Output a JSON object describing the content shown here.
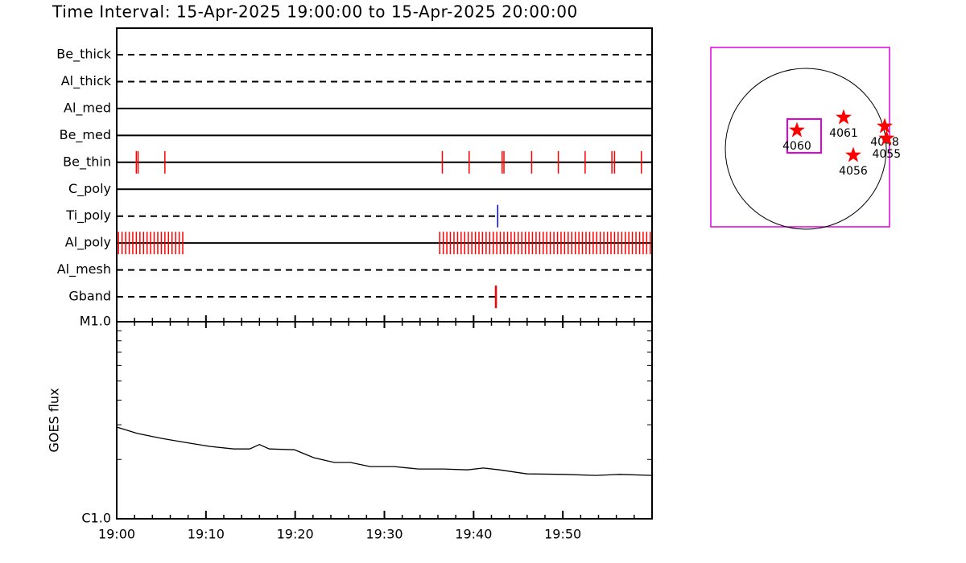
{
  "chart_data": [
    {
      "type": "event",
      "title": "Time Interval: 15-Apr-2025 19:00:00 to 15-Apr-2025 20:00:00",
      "xlim": [
        0,
        60
      ],
      "series": [
        {
          "name": "Be_thick",
          "style": "dashed",
          "color": "#ff0000",
          "x": []
        },
        {
          "name": "Al_thick",
          "style": "dashed",
          "color": "#ff0000",
          "x": []
        },
        {
          "name": "Al_med",
          "style": "solid",
          "color": "#ff0000",
          "x": []
        },
        {
          "name": "Be_med",
          "style": "solid",
          "color": "#ff0000",
          "x": []
        },
        {
          "name": "Be_thin",
          "style": "solid",
          "color": "#ff0000",
          "x": [
            2.2,
            2.4,
            5.4,
            36.5,
            39.5,
            43.2,
            43.4,
            46.5,
            49.5,
            52.5,
            55.5,
            55.8,
            58.8
          ]
        },
        {
          "name": "C_poly",
          "style": "solid",
          "color": "#ff0000",
          "x": []
        },
        {
          "name": "Ti_poly",
          "style": "dashed",
          "color": "#0000ff",
          "x": [
            42.7
          ]
        },
        {
          "name": "Al_poly",
          "style": "solid",
          "color": "#ff0000",
          "x": [
            0.2,
            0.6,
            1.0,
            1.4,
            1.8,
            2.2,
            2.6,
            3.0,
            3.4,
            3.8,
            4.2,
            4.6,
            5.0,
            5.4,
            5.8,
            6.2,
            6.6,
            7.0,
            7.4,
            36.2,
            36.6,
            37.0,
            37.4,
            37.8,
            38.2,
            38.6,
            39.0,
            39.4,
            39.8,
            40.2,
            40.6,
            41.0,
            41.4,
            41.8,
            42.2,
            42.6,
            43.0,
            43.4,
            43.8,
            44.2,
            44.6,
            45.0,
            45.4,
            45.8,
            46.2,
            46.6,
            47.0,
            47.4,
            47.8,
            48.2,
            48.6,
            49.0,
            49.4,
            49.8,
            50.2,
            50.6,
            51.0,
            51.4,
            51.8,
            52.2,
            52.6,
            53.0,
            53.4,
            53.8,
            54.2,
            54.6,
            55.0,
            55.4,
            55.8,
            56.2,
            56.6,
            57.0,
            57.4,
            57.8,
            58.2,
            58.6,
            59.0,
            59.4,
            59.8
          ]
        },
        {
          "name": "Al_mesh",
          "style": "dashed",
          "color": "#ff0000",
          "x": []
        },
        {
          "name": "Gband",
          "style": "dashed",
          "color": "#ff0000",
          "x": [
            42.5
          ]
        }
      ]
    },
    {
      "type": "line",
      "ylabel": "GOES flux",
      "log_scale": true,
      "color": "#000000",
      "xlim": [
        0,
        60
      ],
      "xticks": [
        {
          "value": 0,
          "label": "19:00"
        },
        {
          "value": 10,
          "label": "19:10"
        },
        {
          "value": 20,
          "label": "19:20"
        },
        {
          "value": 30,
          "label": "19:30"
        },
        {
          "value": 40,
          "label": "19:40"
        },
        {
          "value": 50,
          "label": "19:50"
        }
      ],
      "ylim": [
        1e-06,
        1e-05
      ],
      "yticks": [
        {
          "value": 1e-06,
          "label": "C1.0"
        },
        {
          "value": 1e-05,
          "label": "M1.0"
        }
      ],
      "x": [
        0,
        2.3,
        5,
        7.7,
        10.4,
        13.1,
        14.9,
        16,
        17.1,
        19.9,
        22.1,
        24.4,
        26.2,
        28.4,
        31.1,
        33.8,
        36.6,
        39.3,
        41.1,
        42.9,
        46,
        50.1,
        53.7,
        56.4,
        60
      ],
      "values": [
        2.92e-06,
        2.71e-06,
        2.56e-06,
        2.44e-06,
        2.33e-06,
        2.26e-06,
        2.26e-06,
        2.38e-06,
        2.26e-06,
        2.24e-06,
        2.04e-06,
        1.93e-06,
        1.93e-06,
        1.84e-06,
        1.84e-06,
        1.79e-06,
        1.79e-06,
        1.77e-06,
        1.81e-06,
        1.77e-06,
        1.69e-06,
        1.68e-06,
        1.66e-06,
        1.68e-06,
        1.66e-06
      ]
    },
    {
      "type": "scatter",
      "color": "#ff0000",
      "labels": [
        "4060",
        "4061",
        "4048",
        "4055",
        "4056"
      ],
      "x": [
        -106,
        451,
        941,
        963,
        566
      ],
      "y": [
        221,
        374,
        269,
        125,
        -77
      ]
    }
  ]
}
